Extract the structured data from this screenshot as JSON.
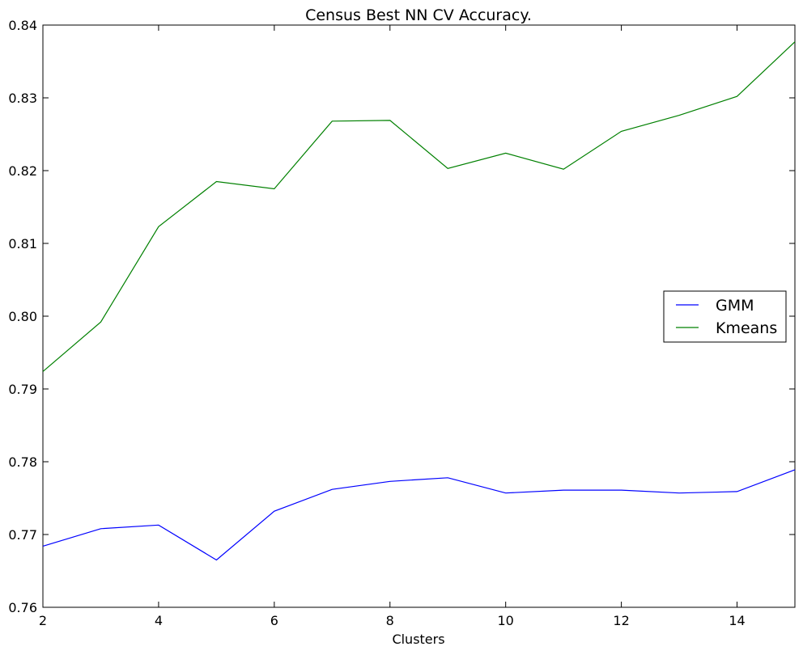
{
  "chart_data": {
    "type": "line",
    "title": "Census Best NN CV Accuracy.",
    "xlabel": "Clusters",
    "ylabel": "",
    "xlim": [
      2,
      15
    ],
    "ylim": [
      0.76,
      0.84
    ],
    "x_ticks": [
      2,
      4,
      6,
      8,
      10,
      12,
      14
    ],
    "y_ticks": [
      "0.76",
      "0.77",
      "0.78",
      "0.79",
      "0.80",
      "0.81",
      "0.82",
      "0.83",
      "0.84"
    ],
    "x": [
      2,
      3,
      4,
      5,
      6,
      7,
      8,
      9,
      10,
      11,
      12,
      13,
      14,
      15
    ],
    "series": [
      {
        "name": "GMM",
        "color": "#0000ff",
        "values": [
          0.7684,
          0.7708,
          0.7713,
          0.7665,
          0.7732,
          0.7762,
          0.7773,
          0.7778,
          0.7757,
          0.7761,
          0.7761,
          0.7757,
          0.7759,
          0.7789
        ]
      },
      {
        "name": "Kmeans",
        "color": "#008000",
        "values": [
          0.7924,
          0.7992,
          0.8123,
          0.8185,
          0.8175,
          0.8268,
          0.8269,
          0.8203,
          0.8224,
          0.8202,
          0.8254,
          0.8276,
          0.8302,
          0.8377
        ]
      }
    ],
    "grid": false,
    "legend_position": "center-right"
  }
}
